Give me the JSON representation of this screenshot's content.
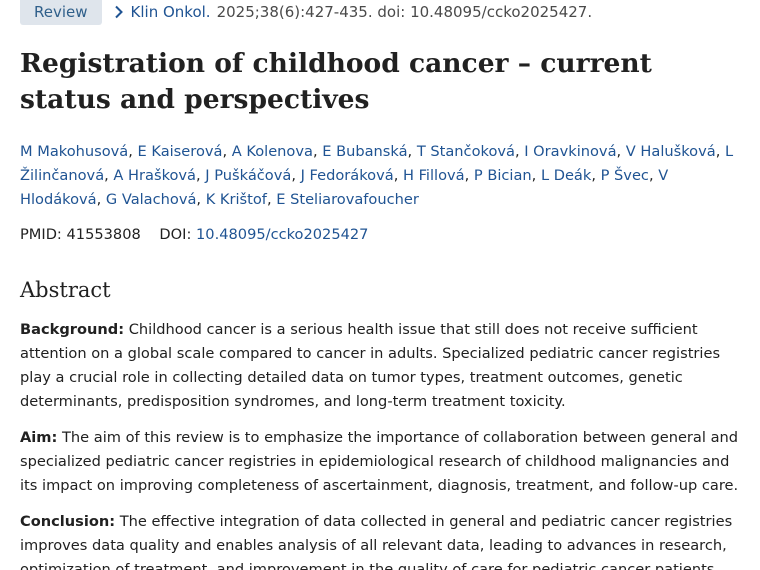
{
  "article": {
    "type_badge": "Review",
    "journal": "Klin Onkol.",
    "citation_rest": "2025;38(6):427-435. doi: 10.48095/ccko2025427.",
    "title": "Registration of childhood cancer – current status and perspectives",
    "authors": [
      "M Makohusová",
      "E Kaiserová",
      "A Kolenova",
      "E Bubanská",
      "T Stančoková",
      "I Oravkinová",
      "V Halušková",
      "L Žilinčanová",
      "A Hrašková",
      "J Puškáčová",
      "J Fedoráková",
      "H Fillová",
      "P Bician",
      "L Deák",
      "P Švec",
      "V Hlodáková",
      "G Valachová",
      "K Krištof",
      "E Steliarovafoucher"
    ],
    "pmid_label": "PMID:",
    "pmid": "41553808",
    "doi_label": "DOI:",
    "doi": "10.48095/ccko2025427"
  },
  "abstract": {
    "heading": "Abstract",
    "sections": [
      {
        "label": "Background:",
        "text": "Childhood cancer is a serious health issue that still does not receive sufficient attention on a global scale compared to cancer in adults. Specialized pediatric cancer registries play a crucial role in collecting detailed data on tumor types, treatment outcomes, genetic determinants, predisposition syndromes, and long-term treatment toxicity."
      },
      {
        "label": "Aim:",
        "text": "The aim of this review is to emphasize the importance of collaboration between general and specialized pediatric cancer registries in epidemiological research of childhood malignancies and its impact on improving completeness of ascertainment, diagnosis, treatment, and follow-up care."
      },
      {
        "label": "Conclusion:",
        "text": "The effective integration of data collected in general and pediatric cancer registries improves data quality and enables analysis of all relevant data, leading to advances in research, optimization of treatment, and improvement in the quality of care for pediatric cancer patients."
      }
    ]
  },
  "colors": {
    "link": "#205493",
    "badge_bg": "#dfe5ec",
    "text": "#212121"
  },
  "icons": {
    "citation_chevron": "chevron-right-icon"
  }
}
